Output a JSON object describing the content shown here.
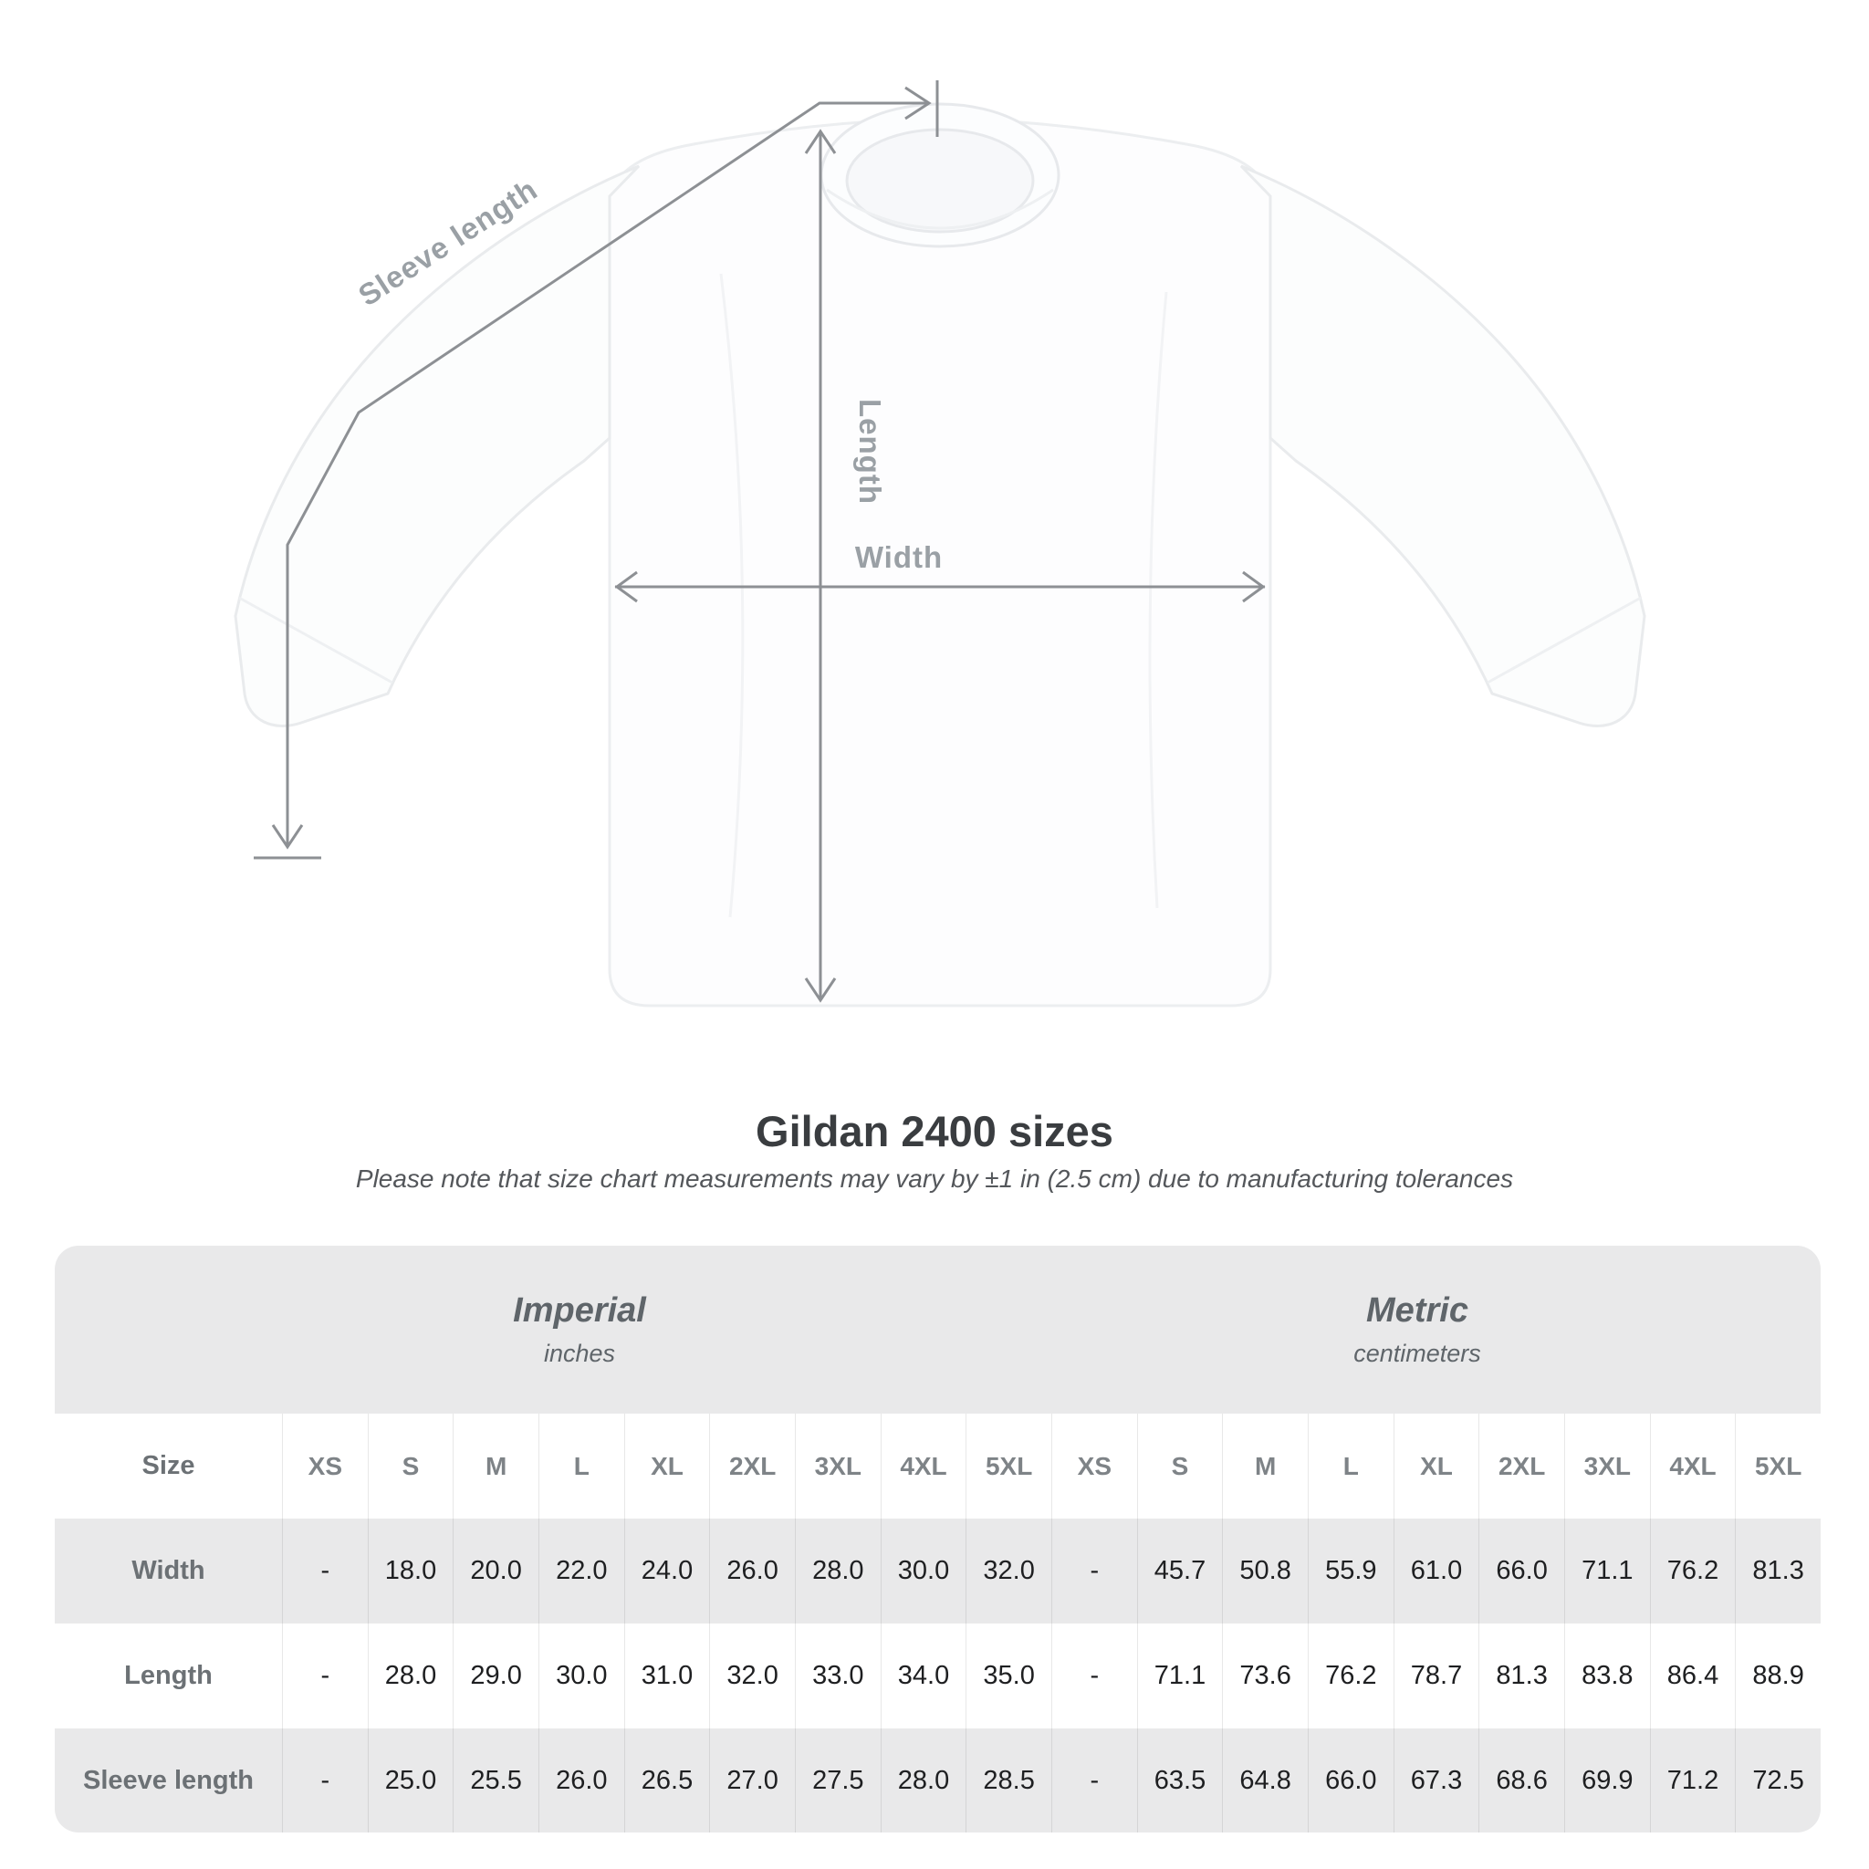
{
  "diagram": {
    "sleeve_length_label": "Sleeve length",
    "length_label": "Length",
    "width_label": "Width"
  },
  "title": "Gildan 2400 sizes",
  "subtitle": "Please note that size chart measurements may vary by ±1 in (2.5 cm) due to manufacturing tolerances",
  "table": {
    "sections": [
      {
        "label": "Imperial",
        "sublabel": "inches"
      },
      {
        "label": "Metric",
        "sublabel": "centimeters"
      }
    ],
    "size_header": "Size",
    "sizes": [
      "XS",
      "S",
      "M",
      "L",
      "XL",
      "2XL",
      "3XL",
      "4XL",
      "5XL"
    ],
    "rows": [
      {
        "label": "Width",
        "imperial": [
          "-",
          "18.0",
          "20.0",
          "22.0",
          "24.0",
          "26.0",
          "28.0",
          "30.0",
          "32.0"
        ],
        "metric": [
          "-",
          "45.7",
          "50.8",
          "55.9",
          "61.0",
          "66.0",
          "71.1",
          "76.2",
          "81.3"
        ]
      },
      {
        "label": "Length",
        "imperial": [
          "-",
          "28.0",
          "29.0",
          "30.0",
          "31.0",
          "32.0",
          "33.0",
          "34.0",
          "35.0"
        ],
        "metric": [
          "-",
          "71.1",
          "73.6",
          "76.2",
          "78.7",
          "81.3",
          "83.8",
          "86.4",
          "88.9"
        ]
      },
      {
        "label": "Sleeve length",
        "imperial": [
          "-",
          "25.0",
          "25.5",
          "26.0",
          "26.5",
          "27.0",
          "27.5",
          "28.0",
          "28.5"
        ],
        "metric": [
          "-",
          "63.5",
          "64.8",
          "66.0",
          "67.3",
          "68.6",
          "69.9",
          "71.2",
          "72.5"
        ]
      }
    ]
  },
  "colors": {
    "measure_line": "#8d9094",
    "diagram_label": "#9aa0a5",
    "title_text": "#3a3d40",
    "subtitle_text": "#54575b",
    "card_bg": "#e9e9ea",
    "table_value_text": "#1e1f21",
    "table_muted_text": "#7e8387"
  },
  "chart_data": {
    "type": "table",
    "title": "Gildan 2400 sizes",
    "note": "Please note that size chart measurements may vary by ±1 in (2.5 cm) due to manufacturing tolerances",
    "unit_sections": [
      {
        "name": "Imperial",
        "unit": "inches"
      },
      {
        "name": "Metric",
        "unit": "centimeters"
      }
    ],
    "columns": [
      "XS",
      "S",
      "M",
      "L",
      "XL",
      "2XL",
      "3XL",
      "4XL",
      "5XL"
    ],
    "rows": [
      {
        "measurement": "Width",
        "imperial_in": [
          null,
          18.0,
          20.0,
          22.0,
          24.0,
          26.0,
          28.0,
          30.0,
          32.0
        ],
        "metric_cm": [
          null,
          45.7,
          50.8,
          55.9,
          61.0,
          66.0,
          71.1,
          76.2,
          81.3
        ]
      },
      {
        "measurement": "Length",
        "imperial_in": [
          null,
          28.0,
          29.0,
          30.0,
          31.0,
          32.0,
          33.0,
          34.0,
          35.0
        ],
        "metric_cm": [
          null,
          71.1,
          73.6,
          76.2,
          78.7,
          81.3,
          83.8,
          86.4,
          88.9
        ]
      },
      {
        "measurement": "Sleeve length",
        "imperial_in": [
          null,
          25.0,
          25.5,
          26.0,
          26.5,
          27.0,
          27.5,
          28.0,
          28.5
        ],
        "metric_cm": [
          null,
          63.5,
          64.8,
          66.0,
          67.3,
          68.6,
          69.9,
          71.2,
          72.5
        ]
      }
    ]
  }
}
